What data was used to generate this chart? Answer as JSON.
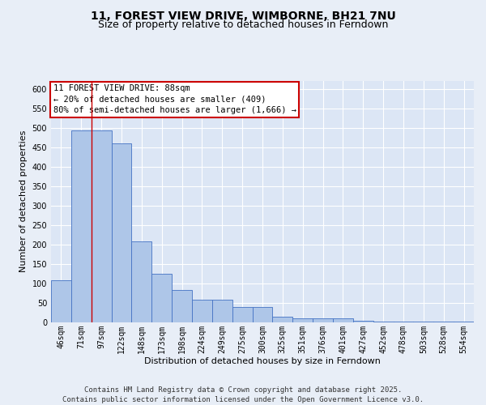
{
  "title_line1": "11, FOREST VIEW DRIVE, WIMBORNE, BH21 7NU",
  "title_line2": "Size of property relative to detached houses in Ferndown",
  "xlabel": "Distribution of detached houses by size in Ferndown",
  "ylabel": "Number of detached properties",
  "categories": [
    "46sqm",
    "71sqm",
    "97sqm",
    "122sqm",
    "148sqm",
    "173sqm",
    "198sqm",
    "224sqm",
    "249sqm",
    "275sqm",
    "300sqm",
    "325sqm",
    "351sqm",
    "376sqm",
    "401sqm",
    "427sqm",
    "452sqm",
    "478sqm",
    "503sqm",
    "528sqm",
    "554sqm"
  ],
  "values": [
    107,
    493,
    493,
    460,
    207,
    123,
    82,
    57,
    57,
    38,
    38,
    14,
    10,
    10,
    10,
    4,
    2,
    2,
    2,
    1,
    1
  ],
  "bar_color": "#aec6e8",
  "bar_edge_color": "#4472c4",
  "background_color": "#dce6f5",
  "fig_background_color": "#e8eef7",
  "grid_color": "#ffffff",
  "annotation_box_text_line1": "11 FOREST VIEW DRIVE: 88sqm",
  "annotation_box_text_line2": "← 20% of detached houses are smaller (409)",
  "annotation_box_text_line3": "80% of semi-detached houses are larger (1,666) →",
  "annotation_box_color": "#ffffff",
  "annotation_box_edge_color": "#cc0000",
  "red_line_x": 1.5,
  "ylim": [
    0,
    620
  ],
  "yticks": [
    0,
    50,
    100,
    150,
    200,
    250,
    300,
    350,
    400,
    450,
    500,
    550,
    600
  ],
  "footer_line1": "Contains HM Land Registry data © Crown copyright and database right 2025.",
  "footer_line2": "Contains public sector information licensed under the Open Government Licence v3.0.",
  "title_fontsize": 10,
  "subtitle_fontsize": 9,
  "axis_label_fontsize": 8,
  "tick_fontsize": 7,
  "annotation_fontsize": 7.5,
  "footer_fontsize": 6.5
}
